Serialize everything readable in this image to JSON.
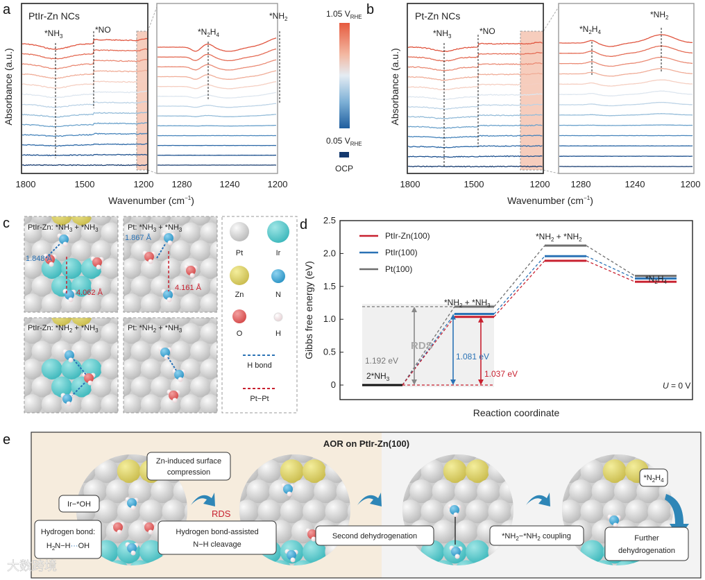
{
  "panels": {
    "a": {
      "letter": "a",
      "title": "PtIr-Zn NCs",
      "ylabel": "Absorbance (a.u.)",
      "ticks_main": [
        "1800",
        "1500",
        "1200"
      ],
      "ticks_inset": [
        "1280",
        "1240",
        "1200"
      ],
      "labels": {
        "nh3": {
          "main": "*NH",
          "sub": "3"
        },
        "no": "*NO",
        "n2h4": {
          "a": "*N",
          "s1": "2",
          "b": "H",
          "s2": "4"
        },
        "nh2": {
          "main": "*NH",
          "sub": "2"
        }
      }
    },
    "b": {
      "letter": "b",
      "title": "Pt-Zn NCs",
      "ylabel": "Absorbance (a.u.)",
      "ticks_main": [
        "1800",
        "1500",
        "1200"
      ],
      "ticks_inset": [
        "1280",
        "1240",
        "1200"
      ],
      "labels": {
        "nh3": {
          "main": "*NH",
          "sub": "3"
        },
        "no": "*NO",
        "n2h4": {
          "a": "*N",
          "s1": "2",
          "b": "H",
          "s2": "4"
        },
        "nh2": {
          "main": "*NH",
          "sub": "2"
        }
      }
    },
    "xlabel": {
      "main": "Wavenumber (cm",
      "sup": "−1",
      "end": ")"
    },
    "colorbar": {
      "top": {
        "main": "1.05 V",
        "sub": "RHE"
      },
      "bottom": {
        "main": "0.05 V",
        "sub": "RHE"
      },
      "ocp": "OCP"
    },
    "c": {
      "letter": "c",
      "cells": [
        {
          "title": {
            "p": "PtIr-Zn: *NH",
            "s1": "3",
            "m": " + *NH",
            "s2": "3"
          },
          "d1": "1.848 Å",
          "d2": "4.062 Å"
        },
        {
          "title": {
            "p": "Pt: *NH",
            "s1": "3",
            "m": " + *NH",
            "s2": "3"
          },
          "d1": "1.867 Å",
          "d2": "4.161 Å"
        },
        {
          "title": {
            "p": "PtIr-Zn: *NH",
            "s1": "2",
            "m": " + *NH",
            "s2": "3"
          }
        },
        {
          "title": {
            "p": "Pt: *NH",
            "s1": "2",
            "m": " + *NH",
            "s2": "3"
          }
        }
      ],
      "legend": {
        "pt": "Pt",
        "ir": "Ir",
        "zn": "Zn",
        "n": "N",
        "o": "O",
        "h": "H",
        "hbond": "H bond",
        "ptpt": "Pt−Pt"
      }
    },
    "d": {
      "letter": "d",
      "u_label": {
        "u": "U",
        "rest": " = 0 V"
      },
      "rds": "RDS",
      "states": [
        {
          "main": "2*NH",
          "sub": "3"
        },
        {
          "a": "*NH",
          "s1": "2",
          "b": " + *NH",
          "s2": "3"
        },
        {
          "a": "*NH",
          "s1": "2",
          "b": " + *NH",
          "s2": "2"
        },
        {
          "a": "*N",
          "s1": "2",
          "b": "H",
          "s2": "4"
        }
      ],
      "barriers": {
        "pt": "1.192 eV",
        "ptir": "1.081 eV",
        "ptirzn": "1.037 eV"
      }
    },
    "e": {
      "letter": "e",
      "title": "AOR on PtIr-Zn(100)",
      "rds": "RDS",
      "callouts": {
        "zn": [
          "Zn-induced surface",
          "compression"
        ],
        "iroh": "Ir−*OH",
        "hbond": {
          "l1": "Hydrogen bond:",
          "h": "H",
          "s": "2",
          "rest": "N−H",
          "dots": "···",
          "oh": "OH"
        },
        "assist": [
          "Hydrogen bond-assisted",
          "N−H cleavage"
        ],
        "second": "Second dehydrogenation",
        "coupling": {
          "a": "*NH",
          "s1": "2",
          "b": "−*NH",
          "s2": "2",
          "c": " coupling"
        },
        "n2h4": {
          "a": "*N",
          "s1": "2",
          "b": "H",
          "s2": "4"
        },
        "further": [
          "Further",
          "dehydrogenation"
        ]
      }
    }
  },
  "watermark": "大数跨境",
  "colors": {
    "ptirzn": "#c8202f",
    "ptir": "#2a72b5",
    "pt": "#6e6e6e",
    "spectra": [
      "#e0553f",
      "#e46c55",
      "#ea8a74",
      "#f0ad98",
      "#f5cfc2",
      "#dde6ef",
      "#bcd3e6",
      "#94bcd9",
      "#6aa1cb",
      "#4684bb",
      "#2d69a7",
      "#1c508e",
      "#14396e"
    ]
  },
  "chart_data": {
    "type": "line",
    "title": "",
    "xlabel": "Reaction coordinate",
    "ylabel": "Gibbs free energy (eV)",
    "ylim": [
      -0.3,
      2.5
    ],
    "yticks": [
      "0",
      "0.5",
      "1.0",
      "1.5",
      "2.0",
      "2.5"
    ],
    "yticks_values": [
      0,
      0.5,
      1.0,
      1.5,
      2.0,
      2.5
    ],
    "categories": [
      "2*NH3",
      "*NH2 + *NH3",
      "*NH2 + *NH2",
      "*N2H4"
    ],
    "legend_placement": "top-left",
    "series": [
      {
        "name": "PtIr-Zn(100)",
        "key": "ptirzn",
        "values": [
          0,
          1.037,
          1.89,
          1.57
        ]
      },
      {
        "name": "PtIr(100)",
        "key": "ptir",
        "values": [
          0,
          1.081,
          1.96,
          1.62
        ]
      },
      {
        "name": "Pt(100)",
        "key": "pt",
        "values": [
          0,
          1.192,
          2.12,
          1.66
        ]
      }
    ]
  }
}
